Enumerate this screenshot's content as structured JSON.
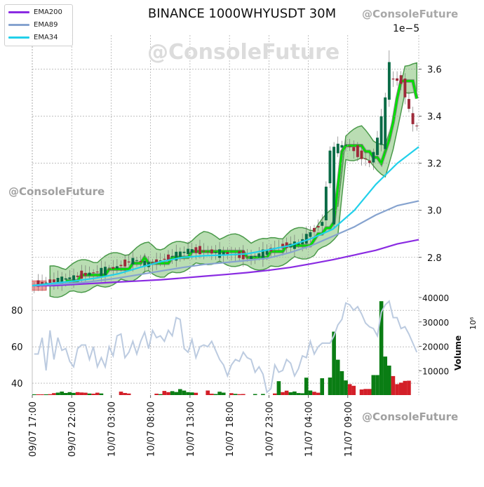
{
  "title": "BINANCE 1000WHYUSDT 30M",
  "watermark": "@ConsoleFuture",
  "price_axis_exponent": "1e−5",
  "legend": [
    {
      "label": "EMA200",
      "color": "#8a2be2"
    },
    {
      "label": "EMA89",
      "color": "#86a3cf"
    },
    {
      "label": "EMA34",
      "color": "#22d0ea"
    }
  ],
  "volume_axis_label": "Volume",
  "volume_axis_exponent": "10⁶",
  "colors": {
    "up": "#0a6b46",
    "down": "#9e2a3a",
    "vol_up": "#0a7d14",
    "vol_down": "#d31f28",
    "cloud": "#a9d5a0",
    "cloud_edge": "#4a9a4a",
    "band": "#00e000",
    "band_edge": "#8a8a8a",
    "rsi": "#bccbe0",
    "grid": "#9a9a9a"
  },
  "chart_data": [
    {
      "type": "candlestick",
      "name": "price",
      "title": "BINANCE 1000WHYUSDT 30M",
      "y_scale": "1e-5",
      "ylim": [
        2.665,
        3.745
      ],
      "y_ticks": [
        2.8,
        3.0,
        3.2,
        3.4,
        3.6
      ],
      "y_tick_labels": [
        "2.8",
        "3.0",
        "3.2",
        "3.4",
        "3.6"
      ],
      "x_ticks": [
        "09/07 17:00",
        "09/07 22:00",
        "10/07 03:00",
        "10/07 08:00",
        "10/07 13:00",
        "10/07 18:00",
        "10/07 23:00",
        "11/07 04:00",
        "11/07 09:00"
      ],
      "series": [
        {
          "name": "EMA200",
          "values": [
            2.68,
            2.68,
            2.685,
            2.69,
            2.695,
            2.7,
            2.705,
            2.712,
            2.72,
            2.727,
            2.735,
            2.745,
            2.757,
            2.773,
            2.79,
            2.81,
            2.83,
            2.857,
            2.875
          ]
        },
        {
          "name": "EMA89",
          "values": [
            2.68,
            2.685,
            2.69,
            2.7,
            2.712,
            2.727,
            2.742,
            2.757,
            2.77,
            2.778,
            2.787,
            2.797,
            2.82,
            2.85,
            2.89,
            2.93,
            2.98,
            3.02,
            3.04
          ]
        },
        {
          "name": "EMA34",
          "values": [
            2.68,
            2.69,
            2.7,
            2.712,
            2.73,
            2.757,
            2.782,
            2.8,
            2.807,
            2.81,
            2.815,
            2.832,
            2.85,
            2.88,
            2.92,
            3.0,
            3.11,
            3.2,
            3.27
          ]
        }
      ]
    },
    {
      "type": "line",
      "name": "oscillator",
      "ylim": [
        33.5,
        87
      ],
      "y_ticks": [
        40,
        60,
        80
      ],
      "y_tick_labels": [
        "40",
        "60",
        "80"
      ],
      "series": [
        {
          "name": "",
          "values": [
            56,
            56,
            65,
            47,
            69,
            53,
            65,
            58,
            59,
            52,
            49,
            59,
            61,
            61,
            53,
            60,
            49,
            54,
            49,
            60,
            55,
            66,
            67,
            54,
            57,
            63,
            56,
            63,
            68,
            59,
            69,
            65,
            66,
            63,
            69,
            66,
            76,
            75,
            59,
            57,
            64,
            54,
            60,
            61,
            60,
            63,
            58,
            53,
            50,
            44,
            50,
            53,
            52,
            57,
            54,
            53,
            46,
            49,
            45,
            35,
            37,
            50,
            46,
            47,
            53,
            51,
            44,
            48,
            55,
            54,
            63,
            56,
            60,
            62,
            62,
            62,
            66,
            72,
            75,
            84,
            83,
            80,
            82,
            78,
            73,
            71,
            70,
            66,
            79,
            83,
            85,
            76,
            76,
            70,
            71,
            67,
            62,
            57
          ]
        }
      ]
    },
    {
      "type": "bar",
      "name": "volume",
      "y_scale": "1e6",
      "ylim": [
        0,
        40000
      ],
      "y_ticks": [
        10000,
        20000,
        30000,
        40000
      ],
      "y_tick_labels": [
        "10000",
        "20000",
        "30000",
        "40000"
      ],
      "ylabel": "Volume",
      "series": [
        {
          "name": "",
          "values": [
            320,
            320,
            320,
            320,
            380,
            800,
            1000,
            1450,
            860,
            1200,
            880,
            1200,
            1060,
            980,
            640,
            580,
            980,
            660,
            0,
            0,
            0,
            0,
            1400,
            850,
            640,
            0,
            0,
            0,
            0,
            0,
            0,
            580,
            360,
            1700,
            1200,
            1600,
            1260,
            2460,
            1850,
            1200,
            1080,
            950,
            0,
            0,
            1860,
            580,
            430,
            1380,
            1000,
            0,
            780,
            480,
            360,
            420,
            0,
            0,
            430,
            0,
            460,
            0,
            0,
            650,
            5700,
            1200,
            1820,
            1150,
            1480,
            830,
            750,
            7150,
            1880,
            1350,
            970,
            6900,
            0,
            7200,
            26000,
            14500,
            9800,
            6000,
            4500,
            3800,
            0,
            2300,
            2500,
            2500,
            8200,
            8200,
            38500,
            15800,
            12100,
            7800,
            4500,
            5100,
            5800,
            5900,
            0,
            0
          ]
        }
      ]
    }
  ]
}
